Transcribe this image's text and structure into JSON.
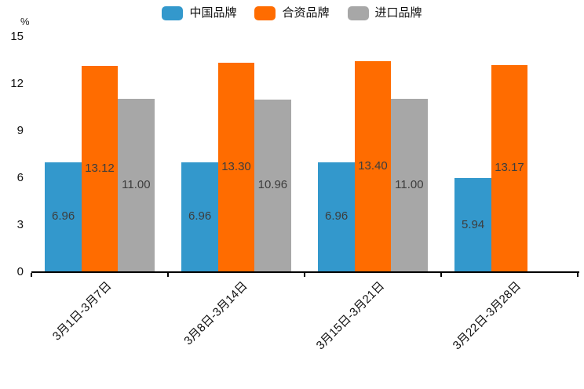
{
  "chart_data": {
    "type": "bar",
    "title": "",
    "unit_label": "%",
    "categories": [
      "3月1日-3月7日",
      "3月8日-3月14日",
      "3月15日-3月21日",
      "3月22日-3月28日"
    ],
    "series": [
      {
        "name": "中国品牌",
        "color": "#3398CC",
        "values": [
          6.96,
          6.96,
          6.96,
          5.94
        ]
      },
      {
        "name": "合资品牌",
        "color": "#FF6C00",
        "values": [
          13.12,
          13.3,
          13.4,
          13.17
        ]
      },
      {
        "name": "进口品牌",
        "color": "#A7A7A7",
        "values": [
          11.0,
          10.96,
          11.0,
          null
        ]
      }
    ],
    "ylim": [
      0,
      15
    ],
    "yticks": [
      0,
      3,
      6,
      9,
      12,
      15
    ],
    "value_labels": true,
    "value_decimals": 2,
    "legend_position": "top",
    "grid": false,
    "axis_color": "#000000",
    "value_label_color": "#3d3d3d"
  }
}
